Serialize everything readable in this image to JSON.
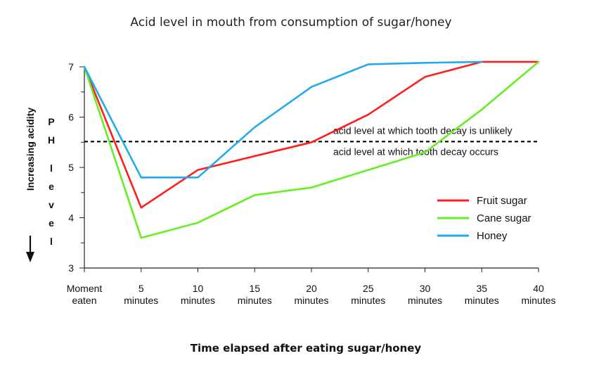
{
  "chart_data": {
    "type": "line",
    "title": "Acid level in mouth from consumption of sugar/honey",
    "xlabel": "Time elapsed after eating sugar/honey",
    "ylabel": "Increasing acidity",
    "ylabel2": "P H   l e v e l",
    "categories": [
      [
        "Moment",
        "eaten"
      ],
      [
        "5",
        "minutes"
      ],
      [
        "10",
        "minutes"
      ],
      [
        "15",
        "minutes"
      ],
      [
        "20",
        "minutes"
      ],
      [
        "25",
        "minutes"
      ],
      [
        "30",
        "minutes"
      ],
      [
        "35",
        "minutes"
      ],
      [
        "40",
        "minutes"
      ]
    ],
    "x": [
      0,
      5,
      10,
      15,
      20,
      25,
      30,
      35,
      40
    ],
    "yticks": [
      3,
      4,
      5,
      6,
      7
    ],
    "ylim": [
      3,
      7
    ],
    "threshold": {
      "value": 5.5,
      "label_above": "acid level at which tooth decay is unlikely",
      "label_below": "acid level at which tooth decay occurs"
    },
    "series": [
      {
        "name": "Fruit sugar",
        "color": "#ff1e1e",
        "x": [
          0,
          5,
          10,
          20,
          25,
          30,
          35,
          40
        ],
        "values": [
          7.0,
          4.2,
          4.95,
          5.5,
          6.05,
          6.8,
          7.1,
          7.1
        ]
      },
      {
        "name": "Cane sugar",
        "color": "#66ee22",
        "x": [
          0,
          5,
          10,
          15,
          20,
          25,
          30,
          35,
          40
        ],
        "values": [
          7.0,
          3.6,
          3.9,
          4.45,
          4.6,
          4.95,
          5.3,
          6.15,
          7.1
        ]
      },
      {
        "name": "Honey",
        "color": "#22aaee",
        "x": [
          0,
          5,
          10,
          15,
          20,
          25,
          30,
          35
        ],
        "values": [
          7.0,
          4.8,
          4.8,
          5.8,
          6.6,
          7.05,
          7.08,
          7.1
        ]
      }
    ],
    "legend_position": "right"
  }
}
